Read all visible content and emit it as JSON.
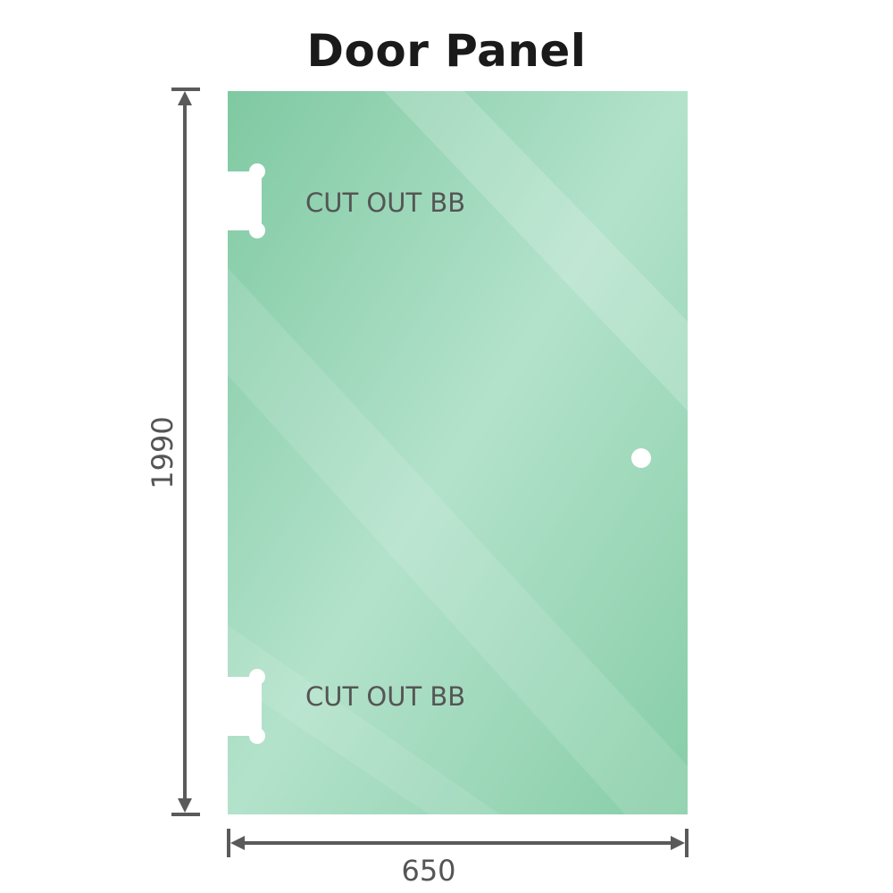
{
  "title": "Door Panel",
  "panel": {
    "glass_color": "#8fd3b0",
    "cutouts": [
      {
        "label": "CUT OUT BB"
      },
      {
        "label": "CUT OUT BB"
      }
    ]
  },
  "dimensions": {
    "height": "1990",
    "width": "650",
    "line_color": "#5a5a5a"
  }
}
